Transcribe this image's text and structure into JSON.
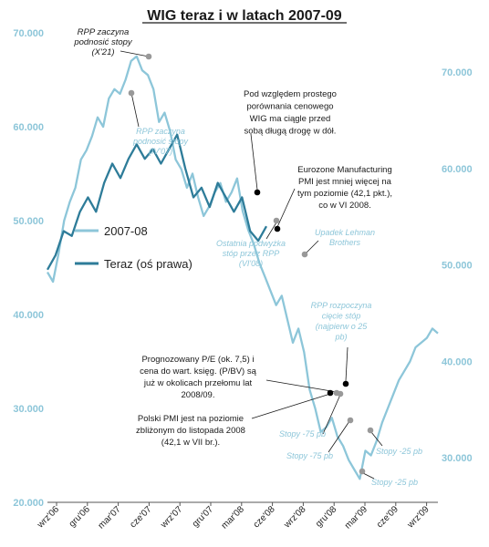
{
  "chart_data": {
    "type": "line",
    "title": "WIG teraz i w latach 2007-09",
    "left_axis": {
      "ticks": [
        "20.000",
        "30.000",
        "40.000",
        "50.000",
        "60.000",
        "70.000"
      ],
      "ylim": [
        20000,
        70000
      ]
    },
    "right_axis": {
      "ticks": [
        "30.000",
        "40.000",
        "50.000",
        "60.000",
        "70.000"
      ],
      "ylim": [
        22500,
        75000
      ]
    },
    "x_ticks": [
      "wrz'06",
      "gru'06",
      "mar'07",
      "cze'07",
      "wrz'07",
      "gru'07",
      "mar'08",
      "cze'08",
      "wrz'08",
      "gru'08",
      "mar'09",
      "cze'09",
      "wrz'09"
    ],
    "legend": {
      "position": "center-left"
    },
    "colors": {
      "series_2007": "#8dc6d9",
      "series_now": "#2e7c99",
      "marker_black": "#000000",
      "marker_grey": "#999999"
    },
    "series": [
      {
        "name": "2007-08",
        "axis": "left",
        "values": [
          44500,
          43500,
          46500,
          50000,
          52000,
          53500,
          56500,
          57500,
          59000,
          61000,
          60000,
          63000,
          64000,
          63500,
          65000,
          67000,
          67500,
          66000,
          65500,
          64000,
          60500,
          61500,
          59500,
          56500,
          55500,
          53500,
          55000,
          52500,
          50500,
          51500,
          53000,
          54000,
          52000,
          53000,
          54500,
          51000,
          49000,
          47500,
          45500,
          44000,
          42500,
          41000,
          42000,
          39500,
          37000,
          38500,
          36000,
          32000,
          30000,
          27500,
          28000,
          29000,
          27000,
          26000,
          24500,
          23500,
          22500,
          25500,
          25000,
          26500,
          28500,
          30000,
          31500,
          33000,
          34000,
          35000,
          36500,
          37000,
          37500,
          38500,
          38000
        ]
      },
      {
        "name": "Teraz (oś prawa)",
        "axis": "right",
        "values": [
          49500,
          51000,
          53500,
          53000,
          55500,
          57000,
          55500,
          58500,
          60500,
          59000,
          61000,
          62500,
          61000,
          62000,
          60500,
          62000,
          63500,
          60000,
          57000,
          58000,
          56000,
          58500,
          57000,
          55500,
          57000,
          53500,
          52500,
          54000
        ]
      }
    ],
    "annotations": [
      {
        "text": [
          "RPP zaczyna",
          "podnosić stopy",
          "(X'21)"
        ],
        "style": "dark-italic"
      },
      {
        "text": [
          "RPP zaczyna",
          "podnosić stopy",
          "(IV'07)"
        ],
        "style": "light"
      },
      {
        "text": [
          "Pod względem prostego",
          "porównania cenowego",
          "WIG ma ciągle przed",
          "sobą długą drogę w dół."
        ],
        "style": "dark"
      },
      {
        "text": [
          "Eurozone Manufacturing",
          "PMI jest mniej więcej na",
          "tym poziomie (42,1 pkt.),",
          "co w VI 2008."
        ],
        "style": "dark"
      },
      {
        "text": [
          "Ostatnia podwyżka",
          "stóp przez RPP",
          "(VI'08)"
        ],
        "style": "light"
      },
      {
        "text": [
          "Upadek Lehman",
          "Brothers"
        ],
        "style": "light"
      },
      {
        "text": [
          "RPP rozpoczyna",
          "cięcie stóp",
          "(najpierw o 25",
          "pb)"
        ],
        "style": "light"
      },
      {
        "text": [
          "Prognozowany P/E (ok. 7,5) i",
          "cena do wart. księg. (P/BV) są",
          "już w okolicach przełomu lat",
          "2008/09."
        ],
        "style": "dark"
      },
      {
        "text": [
          "Polski PMI jest na poziomie",
          "zbliżonym do listopada 2008",
          "(42,1 w VII br.)."
        ],
        "style": "dark"
      },
      {
        "text": [
          "Stopy -75 pb"
        ],
        "style": "light"
      },
      {
        "text": [
          "Stopy -75 pb"
        ],
        "style": "light"
      },
      {
        "text": [
          "Stopy -25 pb"
        ],
        "style": "light"
      },
      {
        "text": [
          "Stopy -25 pb"
        ],
        "style": "light"
      }
    ]
  }
}
